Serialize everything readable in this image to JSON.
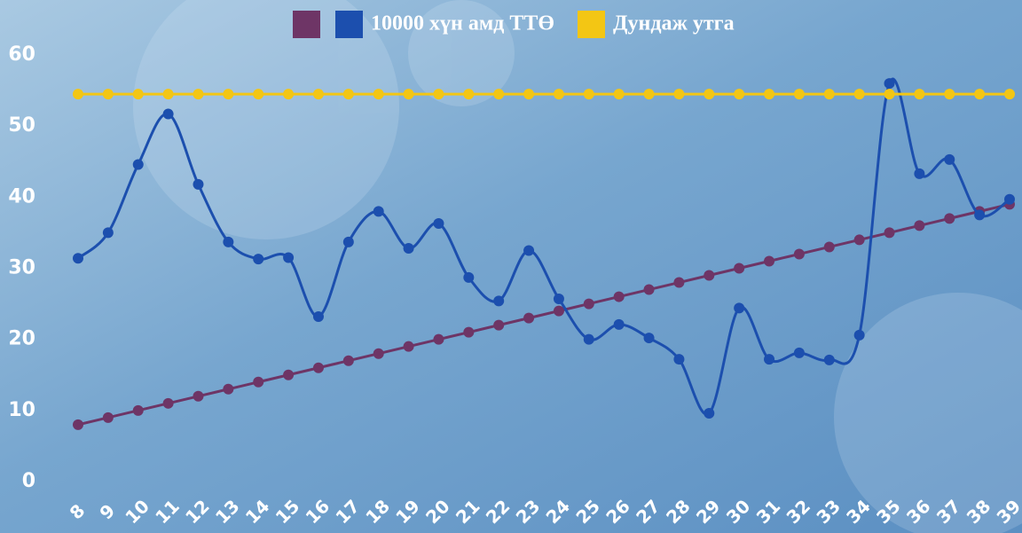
{
  "chart_data": {
    "type": "line",
    "categories": [
      "8",
      "9",
      "10",
      "11",
      "12",
      "13",
      "14",
      "15",
      "16",
      "17",
      "18",
      "19",
      "20",
      "21",
      "22",
      "23",
      "24",
      "25",
      "26",
      "27",
      "28",
      "29",
      "30",
      "31",
      "32",
      "33",
      "34",
      "35",
      "36",
      "37",
      "38",
      "39"
    ],
    "series": [
      {
        "color": "#6e3566",
        "values": [
          8,
          9,
          10,
          11,
          12,
          13,
          14,
          15,
          16,
          17,
          18,
          19,
          20,
          21,
          22,
          23,
          24,
          25,
          26,
          27,
          28,
          29,
          30,
          31,
          32,
          33,
          34,
          35,
          36,
          37,
          38,
          39
        ]
      },
      {
        "name": "10000 хүн амд ТТӨ",
        "color": "#1c4fae",
        "values": [
          31.4,
          35.0,
          44.6,
          51.7,
          41.8,
          33.7,
          31.3,
          31.5,
          23.2,
          33.7,
          38.0,
          32.8,
          36.3,
          28.7,
          25.4,
          32.5,
          25.7,
          20.0,
          22.1,
          20.2,
          17.2,
          9.6,
          24.4,
          17.2,
          18.1,
          17.1,
          20.6,
          56.0,
          43.3,
          45.3,
          37.5,
          39.7
        ]
      },
      {
        "name": "Дундаж утга",
        "color": "#f3c614",
        "values": [
          54.5,
          54.5,
          54.5,
          54.5,
          54.5,
          54.5,
          54.5,
          54.5,
          54.5,
          54.5,
          54.5,
          54.5,
          54.5,
          54.5,
          54.5,
          54.5,
          54.5,
          54.5,
          54.5,
          54.5,
          54.5,
          54.5,
          54.5,
          54.5,
          54.5,
          54.5,
          54.5,
          54.5,
          54.5,
          54.5,
          54.5,
          54.5
        ]
      }
    ],
    "ylim": [
      0,
      60
    ],
    "yticks": [
      0,
      10,
      20,
      30,
      40,
      50,
      60
    ],
    "legend": "top",
    "grid": false
  }
}
